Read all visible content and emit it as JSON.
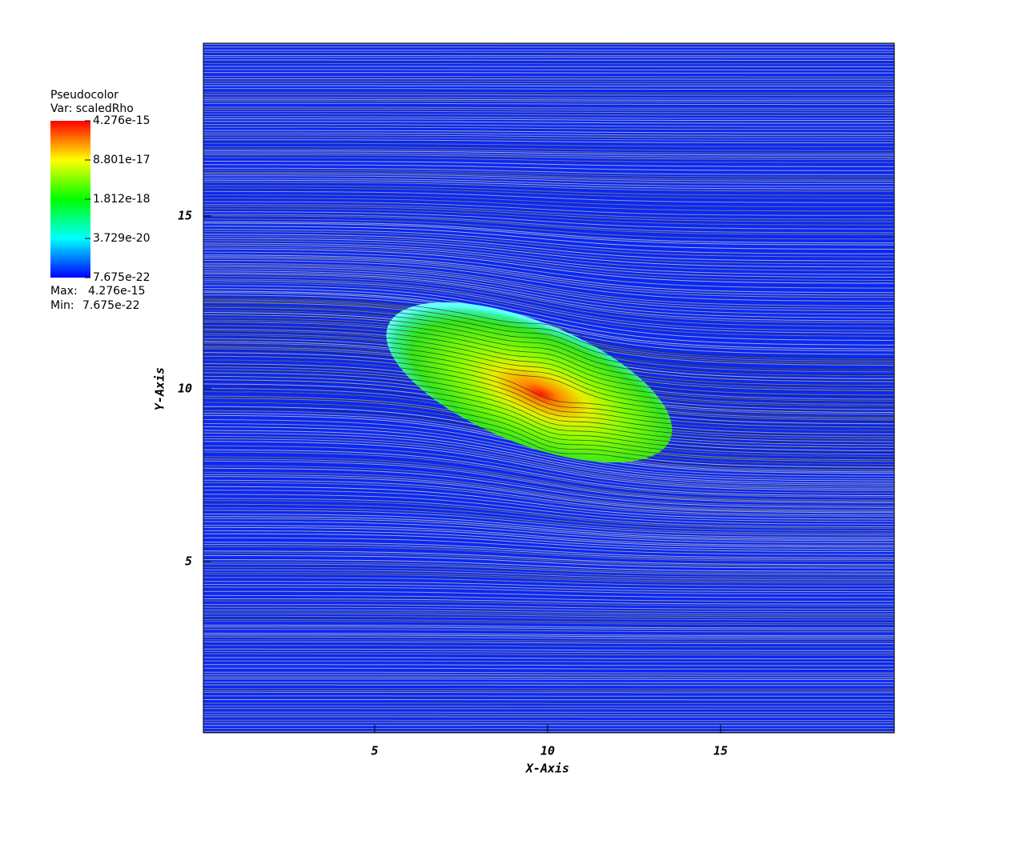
{
  "chart_data": {
    "type": "pseudocolor",
    "xlabel": "X-Axis",
    "ylabel": "Y-Axis",
    "xlim": [
      0,
      20
    ],
    "ylim": [
      0,
      20
    ],
    "xticks": [
      5,
      10,
      15
    ],
    "yticks": [
      5,
      10,
      15
    ],
    "legend": {
      "title": "Pseudocolor",
      "variable": "Var: scaledRho",
      "range": [
        7.675e-22,
        4.276e-15
      ],
      "log": true,
      "ticks": [
        4.276e-15,
        8.801e-17,
        1.812e-18,
        3.729e-20,
        7.675e-22
      ],
      "colors": [
        "#0000ff",
        "#00ffff",
        "#00ff00",
        "#ffff00",
        "#ff0000"
      ],
      "max_label": "Max:",
      "max": 4.276e-15,
      "min_label": "Min:",
      "min": 7.675e-22
    }
  }
}
